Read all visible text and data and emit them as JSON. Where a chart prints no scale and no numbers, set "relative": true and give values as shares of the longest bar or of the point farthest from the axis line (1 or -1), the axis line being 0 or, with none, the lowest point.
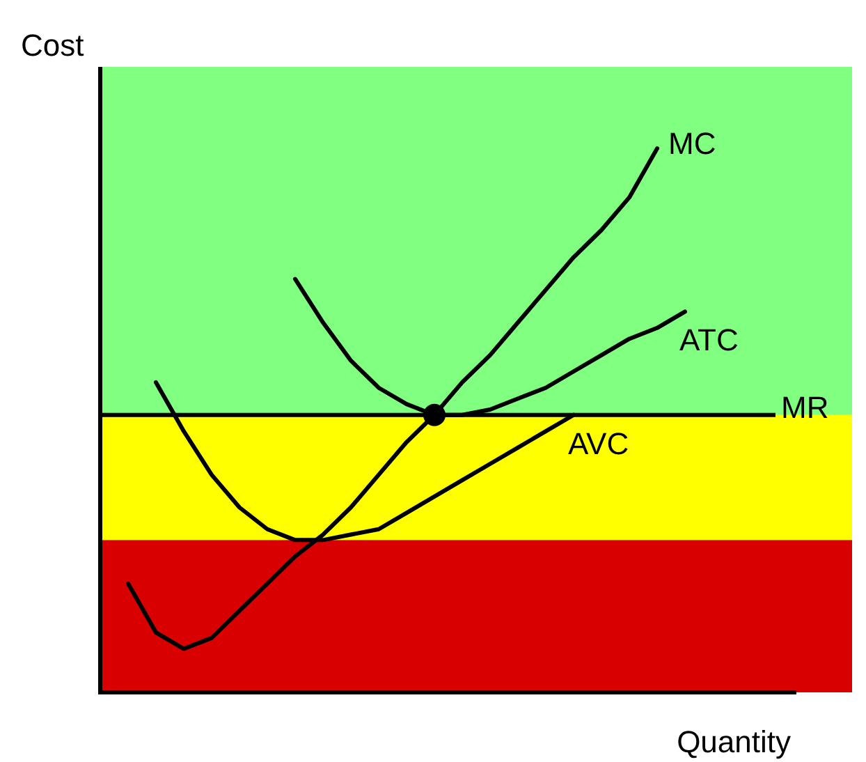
{
  "chart_data": {
    "type": "line",
    "relative": true,
    "xlabel": "Quantity",
    "ylabel": "Cost",
    "marker": "none",
    "line_style": "solid",
    "categories": [
      null,
      null,
      null,
      null,
      null,
      null,
      null,
      null,
      null,
      null,
      null,
      null,
      null,
      null,
      null,
      null,
      null,
      null,
      null,
      null,
      null
    ],
    "series": [
      {
        "name": "MC",
        "color": "#000000",
        "values": [
          0.2,
          0.11,
          0.08,
          0.1,
          0.15,
          0.2,
          0.25,
          0.29,
          0.34,
          0.4,
          0.46,
          0.51,
          0.57,
          0.62,
          0.68,
          0.74,
          0.8,
          0.85,
          0.91,
          1,
          null
        ]
      },
      {
        "name": "ATC",
        "color": "#000000",
        "values": [
          null,
          null,
          null,
          null,
          null,
          null,
          0.76,
          0.68,
          0.61,
          0.56,
          0.53,
          0.51,
          0.51,
          0.52,
          0.54,
          0.56,
          0.59,
          0.62,
          0.65,
          0.67,
          0.7
        ]
      },
      {
        "name": "AVC",
        "color": "#000000",
        "values": [
          null,
          0.57,
          0.48,
          0.4,
          0.34,
          0.3,
          0.28,
          0.28,
          0.29,
          0.3,
          0.33,
          0.36,
          0.39,
          0.42,
          0.45,
          0.48,
          0.51,
          null,
          null,
          null,
          null
        ]
      }
    ],
    "ref_lines": [
      {
        "axis": "y",
        "value": 0.51,
        "label": "MR",
        "color": "#000000"
      }
    ],
    "bands": [
      {
        "axis": "y",
        "from": 0.51,
        "to": 1.15,
        "color": "#80ff80"
      },
      {
        "axis": "y",
        "from": 0.28,
        "to": 0.51,
        "color": "#ffff00"
      },
      {
        "axis": "y",
        "from": 0,
        "to": 0.28,
        "color": "#d80000"
      }
    ]
  }
}
